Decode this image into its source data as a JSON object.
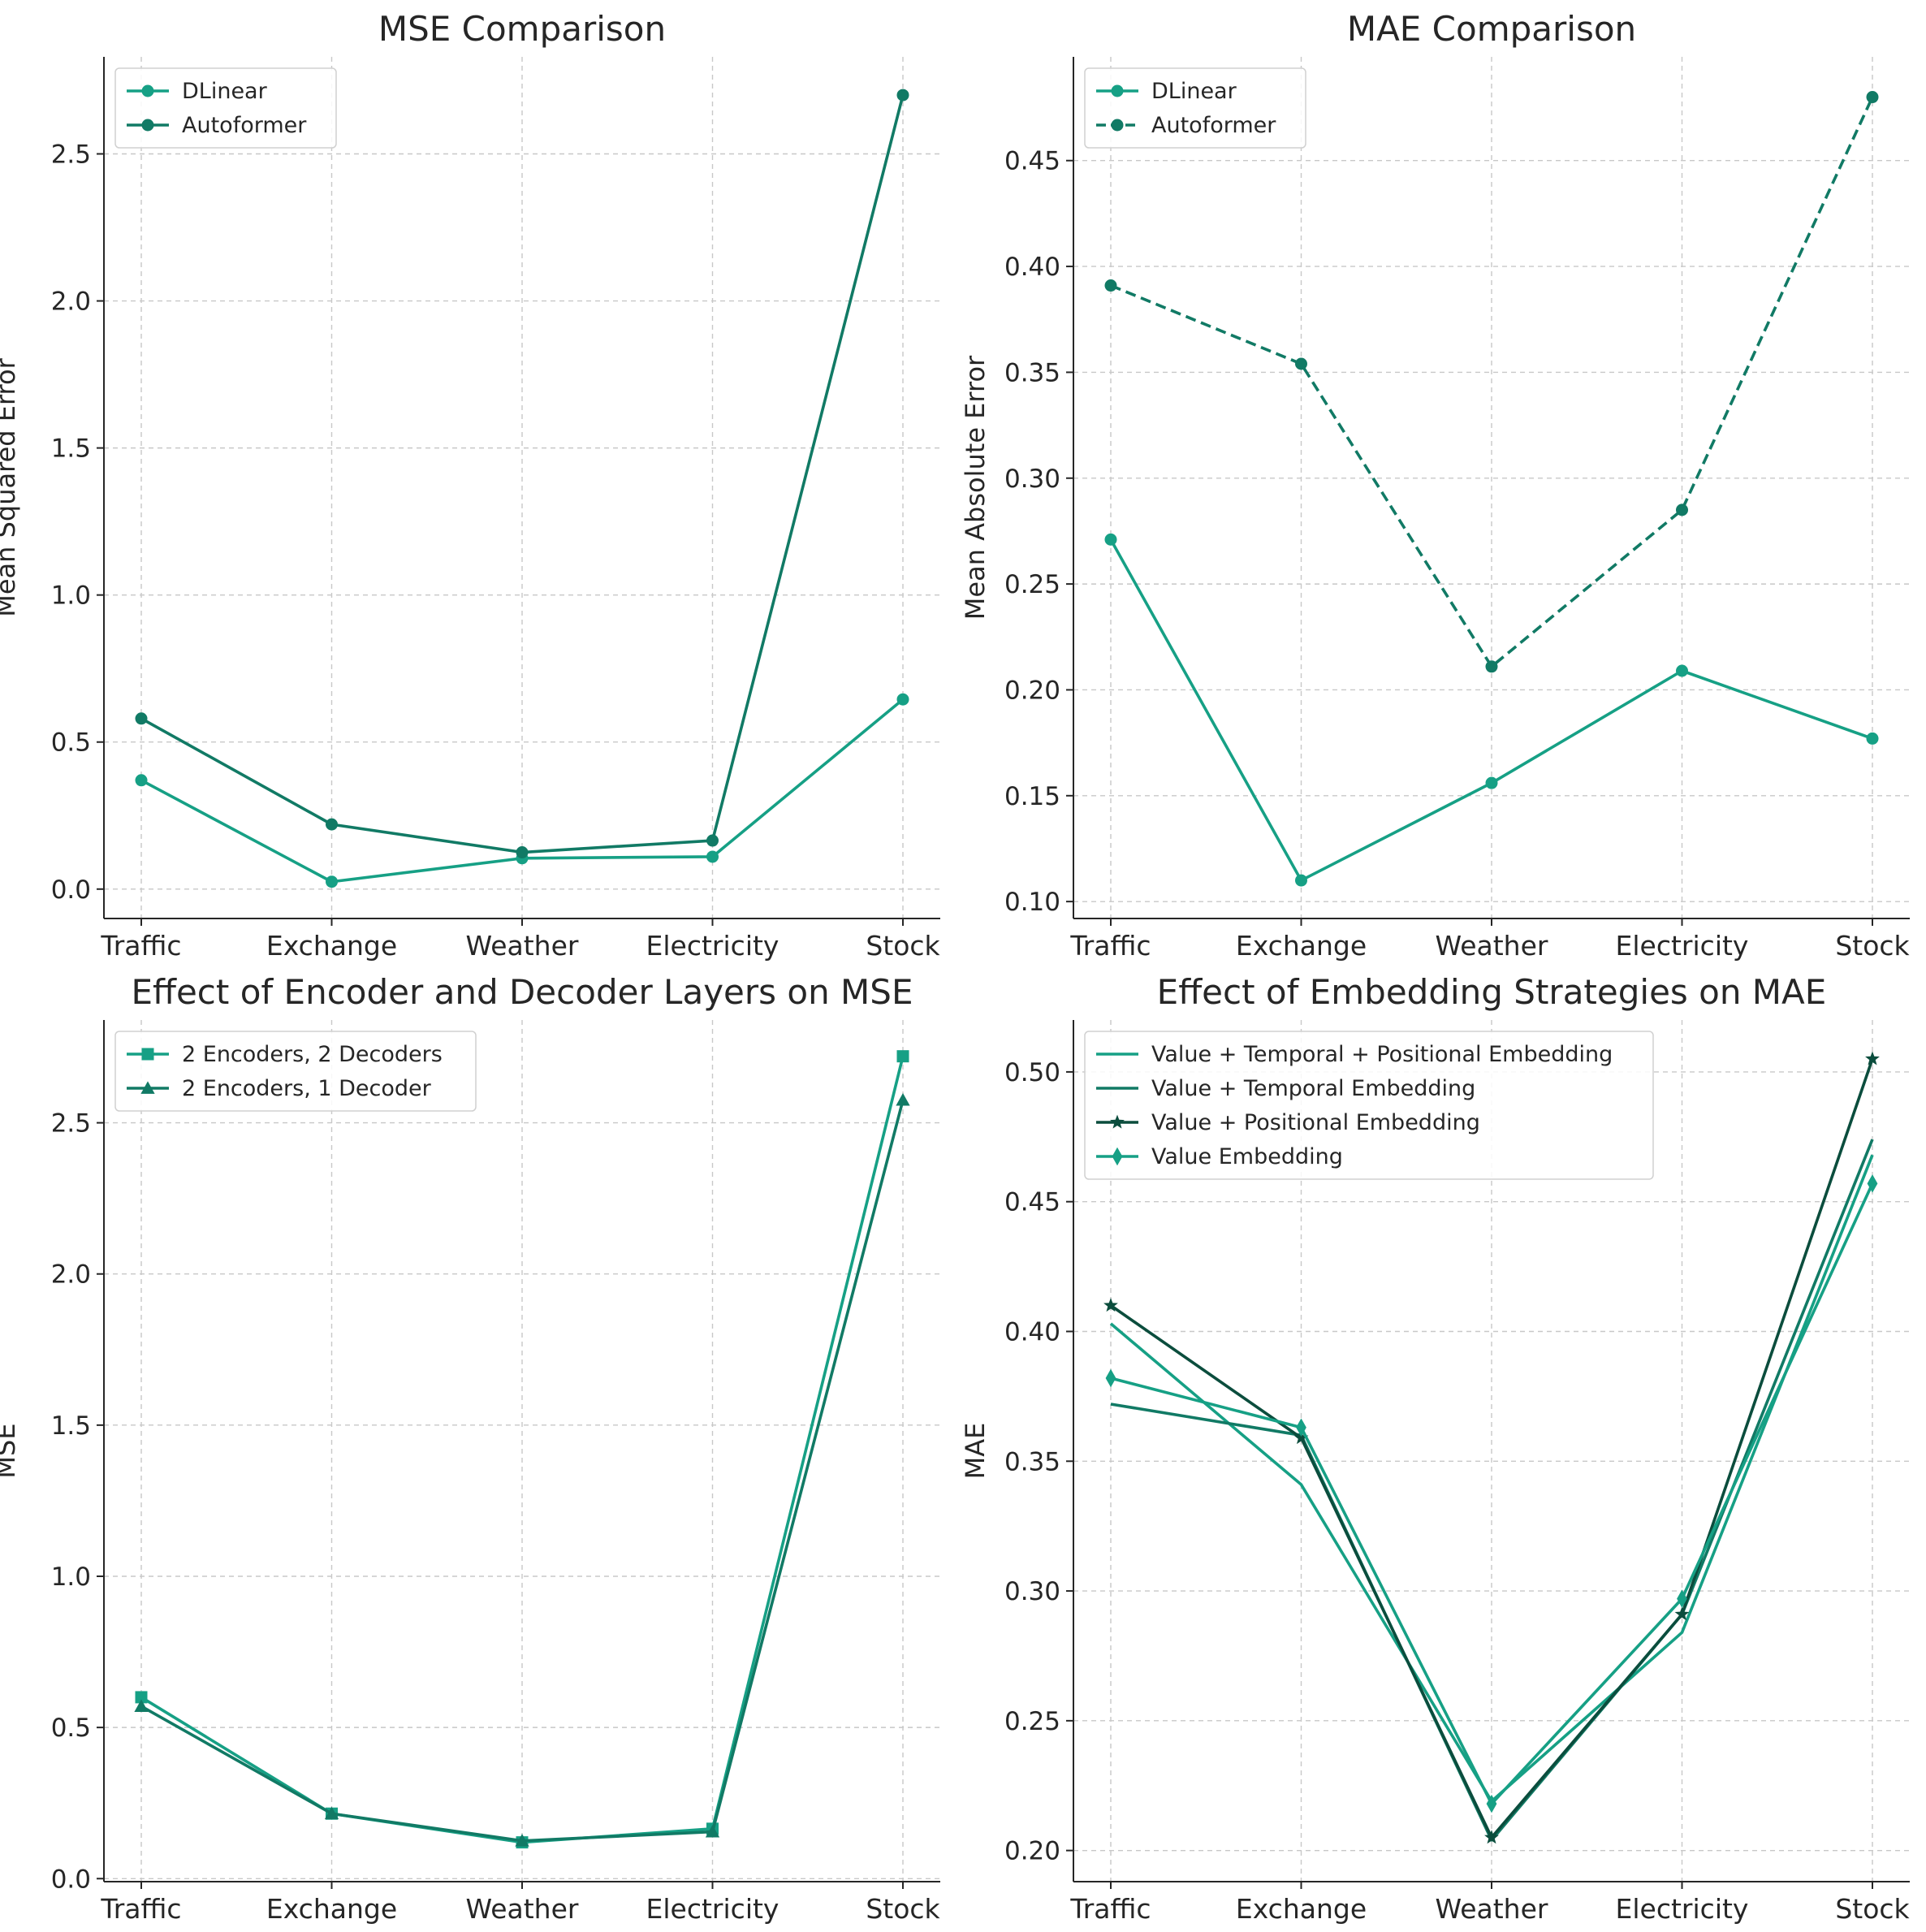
{
  "chart_data": [
    {
      "type": "line",
      "title": "MSE Comparison",
      "xlabel": "",
      "ylabel": "Mean Squared Error",
      "categories": [
        "Traffic",
        "Exchange",
        "Weather",
        "Electricity",
        "Stock"
      ],
      "ylim": [
        -0.1,
        2.83
      ],
      "yticks": [
        0.0,
        0.5,
        1.0,
        1.5,
        2.0,
        2.5
      ],
      "ytick_labels": [
        "0.0",
        "0.5",
        "1.0",
        "1.5",
        "2.0",
        "2.5"
      ],
      "grid": true,
      "legend": "top-left",
      "series": [
        {
          "name": "DLinear",
          "color": "#16a085",
          "marker": "circle",
          "dash": "solid",
          "values": [
            0.37,
            0.025,
            0.105,
            0.11,
            0.645
          ]
        },
        {
          "name": "Autoformer",
          "color": "#117a65",
          "marker": "circle",
          "dash": "solid",
          "values": [
            0.58,
            0.22,
            0.125,
            0.165,
            2.7
          ]
        }
      ]
    },
    {
      "type": "line",
      "title": "MAE Comparison",
      "xlabel": "",
      "ylabel": "Mean Absolute Error",
      "categories": [
        "Traffic",
        "Exchange",
        "Weather",
        "Electricity",
        "Stock"
      ],
      "ylim": [
        0.092,
        0.499
      ],
      "yticks": [
        0.1,
        0.15,
        0.2,
        0.25,
        0.3,
        0.35,
        0.4,
        0.45
      ],
      "ytick_labels": [
        "0.10",
        "0.15",
        "0.20",
        "0.25",
        "0.30",
        "0.35",
        "0.40",
        "0.45"
      ],
      "grid": true,
      "legend": "top-left",
      "series": [
        {
          "name": "DLinear",
          "color": "#16a085",
          "marker": "circle",
          "dash": "solid",
          "values": [
            0.271,
            0.11,
            0.156,
            0.209,
            0.177
          ]
        },
        {
          "name": "Autoformer",
          "color": "#117a65",
          "marker": "circle",
          "dash": "dashed",
          "values": [
            0.391,
            0.354,
            0.211,
            0.285,
            0.48
          ]
        }
      ]
    },
    {
      "type": "line",
      "title": "Effect of Encoder and Decoder Layers on MSE",
      "xlabel": "",
      "ylabel": "MSE",
      "categories": [
        "Traffic",
        "Exchange",
        "Weather",
        "Electricity",
        "Stock"
      ],
      "ylim": [
        -0.01,
        2.84
      ],
      "yticks": [
        0.0,
        0.5,
        1.0,
        1.5,
        2.0,
        2.5
      ],
      "ytick_labels": [
        "0.0",
        "0.5",
        "1.0",
        "1.5",
        "2.0",
        "2.5"
      ],
      "grid": true,
      "legend": "top-left",
      "series": [
        {
          "name": "2 Encoders, 2 Decoders",
          "color": "#16a085",
          "marker": "square",
          "dash": "solid",
          "values": [
            0.6,
            0.215,
            0.12,
            0.165,
            2.72
          ]
        },
        {
          "name": "2 Encoders, 1 Decoder",
          "color": "#117a65",
          "marker": "triangle",
          "dash": "solid",
          "values": [
            0.57,
            0.215,
            0.125,
            0.155,
            2.575
          ]
        }
      ]
    },
    {
      "type": "line",
      "title": "Effect of Embedding Strategies on MAE",
      "xlabel": "",
      "ylabel": "MAE",
      "categories": [
        "Traffic",
        "Exchange",
        "Weather",
        "Electricity",
        "Stock"
      ],
      "ylim": [
        0.188,
        0.52
      ],
      "yticks": [
        0.2,
        0.25,
        0.3,
        0.35,
        0.4,
        0.45,
        0.5
      ],
      "ytick_labels": [
        "0.20",
        "0.25",
        "0.30",
        "0.35",
        "0.40",
        "0.45",
        "0.50"
      ],
      "grid": true,
      "legend": "top-left",
      "series": [
        {
          "name": "Value + Temporal + Positional Embedding",
          "color": "#16a085",
          "marker": "none",
          "dash": "solid",
          "values": [
            0.403,
            0.341,
            0.219,
            0.284,
            0.468
          ]
        },
        {
          "name": "Value + Temporal Embedding",
          "color": "#117a65",
          "marker": "none",
          "dash": "solid",
          "values": [
            0.372,
            0.36,
            0.204,
            0.291,
            0.474
          ]
        },
        {
          "name": "Value + Positional Embedding",
          "color": "#0b4d3d",
          "marker": "star",
          "dash": "solid",
          "values": [
            0.41,
            0.359,
            0.205,
            0.291,
            0.505
          ]
        },
        {
          "name": "Value Embedding",
          "color": "#16a085",
          "marker": "diamond",
          "dash": "solid",
          "values": [
            0.382,
            0.363,
            0.218,
            0.297,
            0.457
          ]
        }
      ]
    }
  ]
}
